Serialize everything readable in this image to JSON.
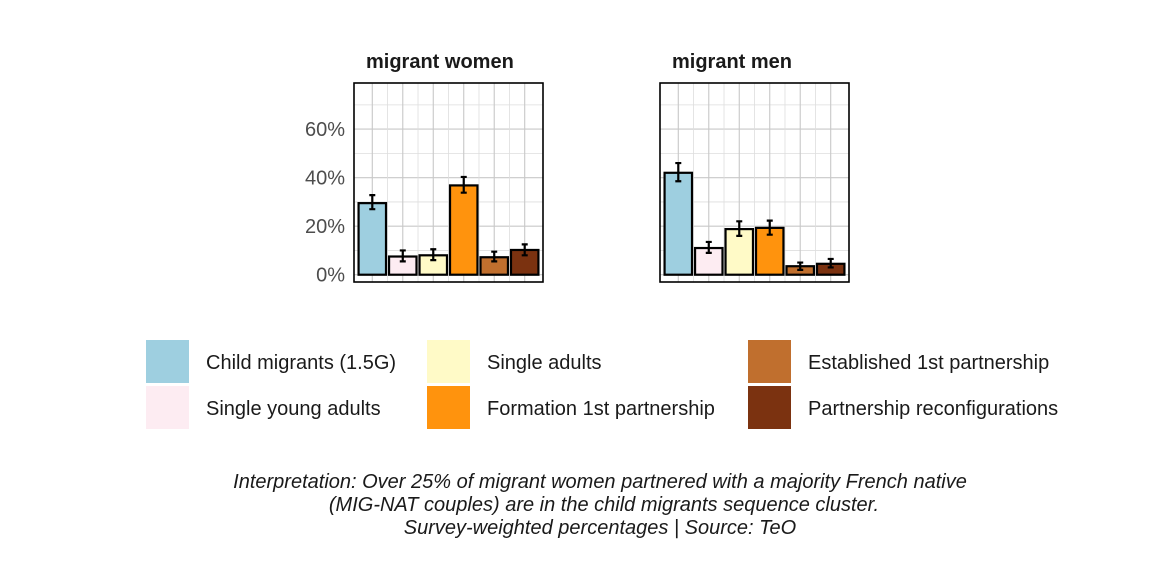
{
  "chart_data": {
    "type": "bar",
    "facets": [
      {
        "title": "migrant women",
        "values": [
          29.5,
          7.5,
          8.0,
          36.8,
          7.2,
          10.2
        ],
        "error_low": [
          27.0,
          5.5,
          6.0,
          33.8,
          5.5,
          8.0
        ],
        "error_high": [
          32.8,
          10.0,
          10.5,
          40.3,
          9.5,
          12.5
        ]
      },
      {
        "title": "migrant men",
        "values": [
          42.0,
          11.0,
          18.8,
          19.3,
          3.5,
          4.5
        ],
        "error_low": [
          38.5,
          9.0,
          16.0,
          16.5,
          2.0,
          3.0
        ],
        "error_high": [
          46.0,
          13.5,
          22.0,
          22.3,
          5.0,
          6.5
        ]
      }
    ],
    "categories": [
      "Child migrants (1.5G)",
      "Single young adults",
      "Single adults",
      "Formation 1st partnership",
      "Established 1st partnership",
      "Partnership reconfigurations"
    ],
    "colors": [
      "#9ecfe0",
      "#fdecf2",
      "#fffac7",
      "#ff930d",
      "#c06f2e",
      "#7b3210"
    ],
    "y_ticks": [
      0,
      20,
      40,
      60
    ],
    "y_tick_labels": [
      "0%",
      "20%",
      "40%",
      "60%"
    ],
    "ylim": [
      -3,
      79
    ],
    "grid": true,
    "legend_position": "bottom",
    "caption_lines": [
      "Interpretation: Over 25% of migrant women partnered with a majority French native",
      "(MIG-NAT couples) are in the child migrants sequence cluster.",
      "Survey-weighted percentages | Source: TeO"
    ]
  }
}
